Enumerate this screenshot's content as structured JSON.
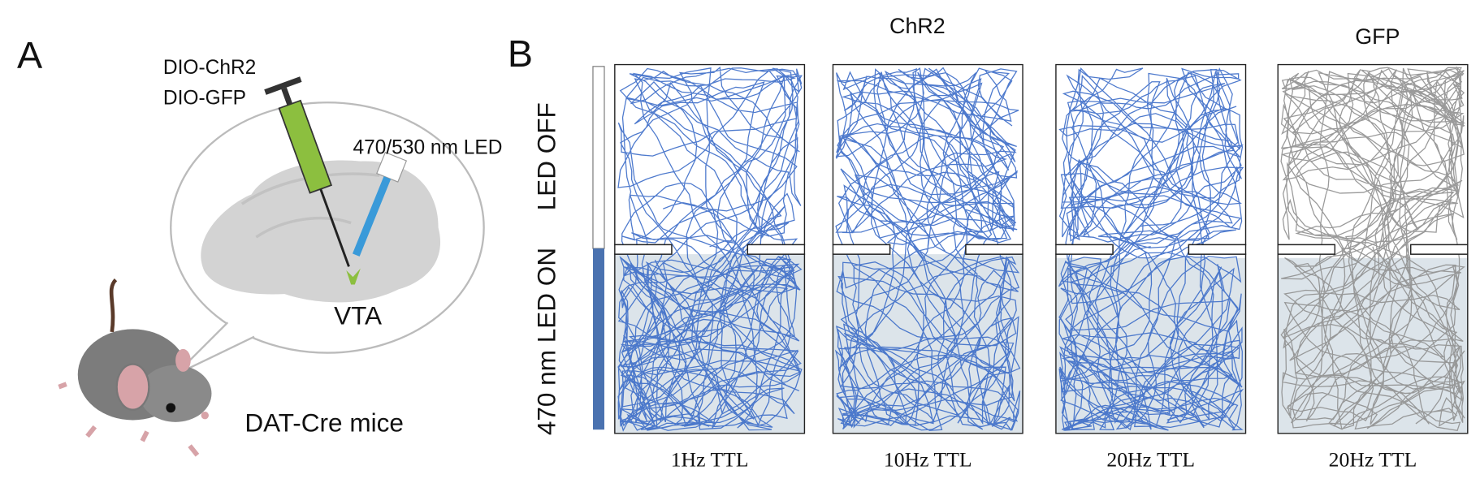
{
  "panel_a": {
    "label": "A",
    "injections": [
      "DIO-ChR2",
      "DIO-GFP"
    ],
    "light": "470/530 nm LED",
    "region": "VTA",
    "subject": "DAT-Cre mice"
  },
  "panel_b": {
    "label": "B",
    "groups": [
      "ChR2",
      "GFP"
    ],
    "rows": [
      "LED OFF",
      "470 nm LED ON"
    ],
    "arenas": [
      "1Hz TTL",
      "10Hz TTL",
      "20Hz TTL",
      "20Hz TTL"
    ]
  }
}
